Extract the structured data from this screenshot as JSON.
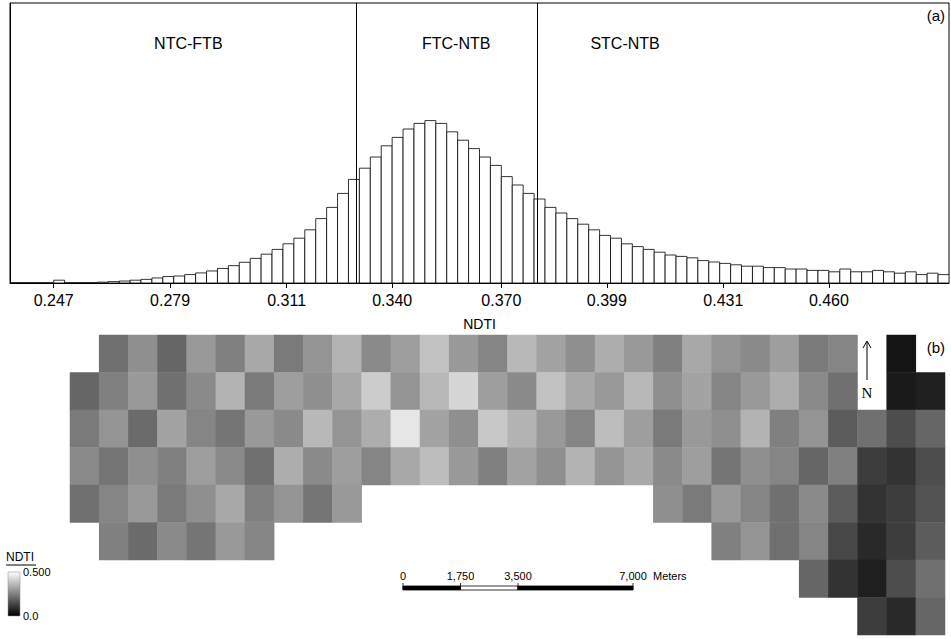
{
  "chart_data": [
    {
      "type": "histogram",
      "panel": "(a)",
      "x_label": "NDTI",
      "color": "#000000",
      "bins": [
        0.235,
        0.238,
        0.241,
        0.244,
        0.247,
        0.25,
        0.253,
        0.256,
        0.259,
        0.262,
        0.265,
        0.268,
        0.271,
        0.274,
        0.277,
        0.28,
        0.283,
        0.286,
        0.289,
        0.292,
        0.295,
        0.298,
        0.301,
        0.304,
        0.307,
        0.31,
        0.313,
        0.316,
        0.319,
        0.322,
        0.325,
        0.328,
        0.331,
        0.334,
        0.337,
        0.34,
        0.343,
        0.346,
        0.349,
        0.352,
        0.355,
        0.358,
        0.361,
        0.364,
        0.367,
        0.37,
        0.373,
        0.376,
        0.379,
        0.382,
        0.385,
        0.388,
        0.391,
        0.394,
        0.397,
        0.4,
        0.403,
        0.406,
        0.409,
        0.412,
        0.415,
        0.418,
        0.421,
        0.424,
        0.427,
        0.43,
        0.433,
        0.436,
        0.439,
        0.442,
        0.445,
        0.448,
        0.451,
        0.454,
        0.457,
        0.46,
        0.463,
        0.466,
        0.469,
        0.472,
        0.475,
        0.478,
        0.481,
        0.484,
        0.487,
        0.49,
        0.493
      ],
      "counts": [
        0,
        0,
        0,
        0,
        1,
        0,
        0,
        0,
        0.3,
        0.5,
        0.7,
        1,
        1.3,
        1.8,
        2.3,
        2.5,
        3,
        3.6,
        4.3,
        5.2,
        6.2,
        7.4,
        8.8,
        10.3,
        12,
        14,
        16,
        19,
        23,
        27,
        32,
        37,
        41,
        45,
        49,
        52,
        55,
        57,
        58,
        57,
        54,
        51,
        48,
        45,
        42,
        38,
        35,
        32,
        30,
        27,
        25,
        23,
        21,
        19,
        17,
        16,
        14,
        13,
        12,
        11,
        10,
        9.5,
        9,
        8,
        7.5,
        7,
        6.5,
        6,
        6,
        5.5,
        5.5,
        5,
        5,
        4.5,
        4.5,
        4,
        5,
        4,
        4,
        4.5,
        4,
        3.5,
        4,
        3,
        3.5,
        3
      ],
      "xlim": [
        0.235,
        0.493
      ],
      "xticks": [
        0.247,
        0.279,
        0.311,
        {
          "value": 0.34,
          "label": "0.340"
        },
        {
          "value": 0.37,
          "label": "0.370"
        },
        0.399,
        0.431,
        {
          "value": 0.46,
          "label": "0.460"
        }
      ],
      "ylim": [
        0,
        100
      ],
      "tick_labels": "x",
      "vlines": [
        0.333,
        0.382
      ],
      "annotations": [
        {
          "text": "NTC-FTB",
          "x": 0.284
        },
        {
          "text": "FTC-NTB",
          "x": 0.3576
        },
        {
          "text": "STC-NTB",
          "x": 0.404
        }
      ]
    },
    {
      "type": "heatmap",
      "panel": "(b)",
      "tick_labels": false,
      "cells": [
        [
          null,
          0.22,
          0.28,
          0.2,
          0.3,
          0.25,
          0.33,
          0.24,
          0.29,
          0.35,
          0.27,
          0.31,
          0.38,
          0.3,
          0.26,
          0.36,
          0.32,
          0.28,
          0.34,
          0.3,
          0.25,
          0.33,
          0.29,
          0.27,
          0.31,
          0.24,
          0.26,
          null,
          0.04,
          null
        ],
        [
          0.2,
          0.25,
          0.3,
          0.22,
          0.27,
          0.35,
          0.24,
          0.31,
          0.28,
          0.33,
          0.4,
          0.29,
          0.36,
          0.42,
          0.31,
          0.27,
          0.38,
          0.33,
          0.3,
          0.36,
          0.28,
          0.32,
          0.26,
          0.3,
          0.34,
          0.27,
          0.22,
          null,
          0.05,
          0.06
        ],
        [
          0.24,
          0.29,
          0.21,
          0.32,
          0.26,
          0.23,
          0.3,
          0.27,
          0.36,
          0.29,
          0.34,
          0.45,
          0.32,
          0.28,
          0.39,
          0.35,
          0.3,
          0.26,
          0.37,
          0.31,
          0.24,
          0.3,
          0.28,
          0.35,
          0.25,
          0.29,
          0.18,
          0.22,
          0.15,
          0.2
        ],
        [
          0.27,
          0.23,
          0.28,
          0.25,
          0.31,
          0.27,
          0.22,
          0.34,
          0.27,
          0.31,
          0.26,
          0.33,
          0.37,
          0.3,
          0.25,
          0.32,
          0.28,
          0.35,
          0.29,
          0.33,
          0.27,
          0.31,
          0.23,
          0.28,
          0.26,
          0.2,
          0.25,
          0.12,
          0.1,
          0.15
        ],
        [
          0.22,
          0.26,
          0.3,
          0.24,
          0.28,
          0.33,
          0.25,
          0.29,
          0.23,
          0.3,
          null,
          null,
          null,
          null,
          null,
          null,
          null,
          null,
          null,
          null,
          0.28,
          0.24,
          0.3,
          0.26,
          0.22,
          0.27,
          0.18,
          0.1,
          0.12,
          0.16
        ],
        [
          null,
          0.25,
          0.21,
          0.27,
          0.23,
          0.3,
          0.26,
          null,
          null,
          null,
          null,
          null,
          null,
          null,
          null,
          null,
          null,
          null,
          null,
          null,
          null,
          null,
          0.25,
          0.29,
          0.22,
          0.26,
          0.14,
          0.08,
          0.12,
          0.18
        ],
        [
          null,
          null,
          null,
          null,
          null,
          null,
          null,
          null,
          null,
          null,
          null,
          null,
          null,
          null,
          null,
          null,
          null,
          null,
          null,
          null,
          null,
          null,
          null,
          null,
          null,
          0.2,
          0.1,
          0.06,
          0.15,
          0.22
        ],
        [
          null,
          null,
          null,
          null,
          null,
          null,
          null,
          null,
          null,
          null,
          null,
          null,
          null,
          null,
          null,
          null,
          null,
          null,
          null,
          null,
          null,
          null,
          null,
          null,
          null,
          null,
          null,
          0.12,
          0.08,
          0.2
        ]
      ],
      "colorbar": {
        "title": "NDTI",
        "range": [
          0,
          0.5
        ],
        "ticks": [
          {
            "value": 0.5,
            "label": "0.500"
          },
          {
            "value": 0,
            "label": "0.0"
          }
        ]
      },
      "scale_bar": {
        "ticks": [
          0,
          {
            "value": 1750,
            "label": "1,750"
          },
          {
            "value": 3500,
            "label": "3,500"
          },
          {
            "value": 7000,
            "label": "7,000"
          }
        ],
        "unit": "Meters"
      },
      "north_label": "N"
    }
  ]
}
